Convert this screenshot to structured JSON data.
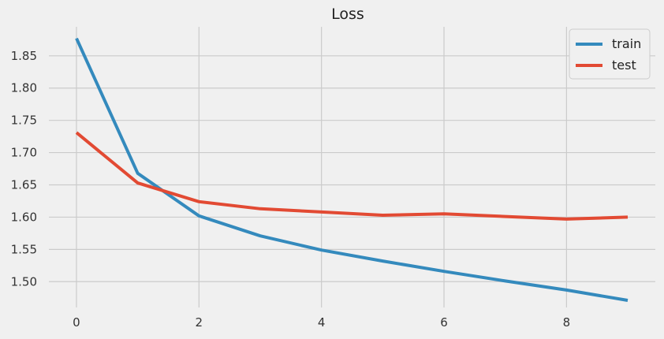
{
  "chart_data": {
    "type": "line",
    "title": "Loss",
    "xlabel": "",
    "ylabel": "",
    "x": [
      0,
      1,
      2,
      3,
      4,
      5,
      6,
      7,
      8,
      9
    ],
    "xlim": [
      -0.45,
      9.45
    ],
    "ylim": [
      1.46,
      1.895
    ],
    "xticks": [
      0,
      2,
      4,
      6,
      8
    ],
    "yticks": [
      1.5,
      1.55,
      1.6,
      1.65,
      1.7,
      1.75,
      1.8,
      1.85
    ],
    "xtick_labels": [
      "0",
      "2",
      "4",
      "6",
      "8"
    ],
    "ytick_labels": [
      "1.50",
      "1.55",
      "1.60",
      "1.65",
      "1.70",
      "1.75",
      "1.80",
      "1.85"
    ],
    "grid": true,
    "legend_position": "top-right",
    "series": [
      {
        "name": "train",
        "color": "#348ABD",
        "values": [
          1.877,
          1.668,
          1.602,
          1.571,
          1.549,
          1.532,
          1.516,
          1.501,
          1.487,
          1.471
        ]
      },
      {
        "name": "test",
        "color": "#E24A33",
        "values": [
          1.731,
          1.653,
          1.624,
          1.613,
          1.608,
          1.603,
          1.605,
          1.601,
          1.597,
          1.6
        ]
      }
    ]
  }
}
